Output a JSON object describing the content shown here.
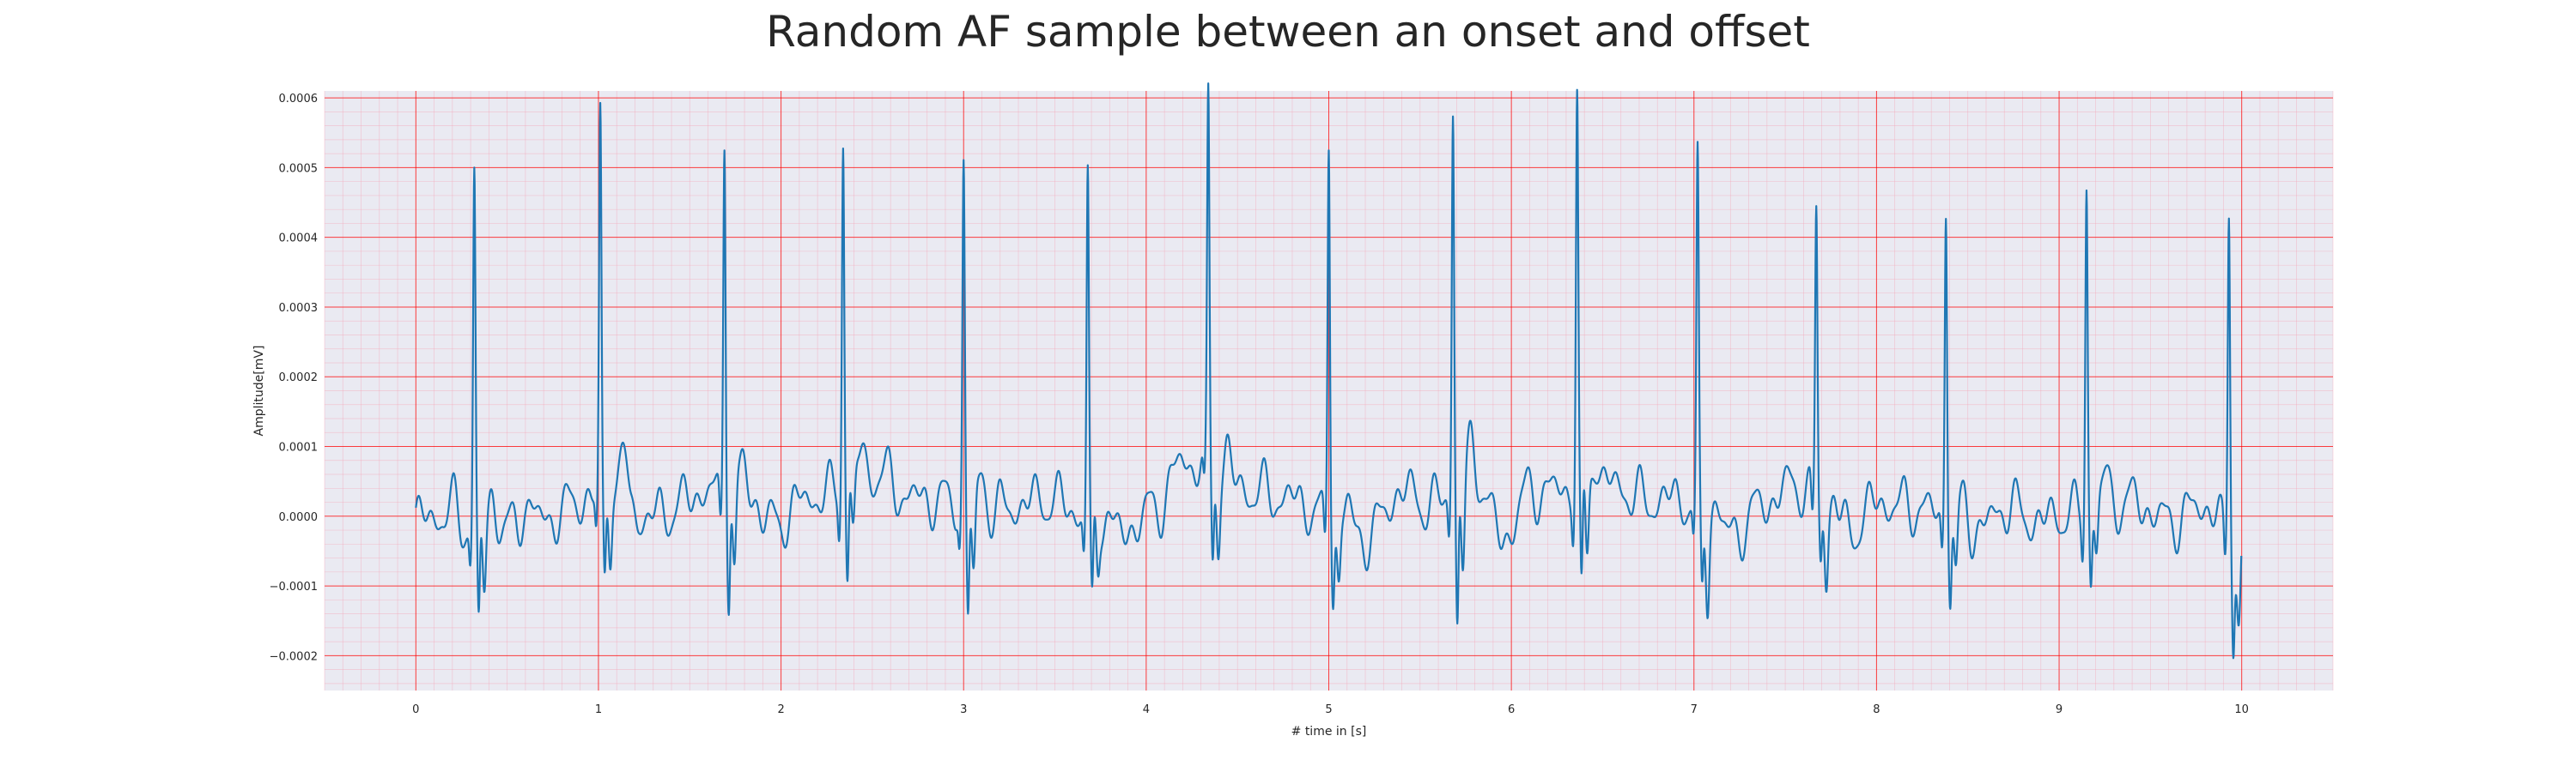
{
  "chart_data": {
    "type": "line",
    "title": "Random AF sample between an onset and offset",
    "xlabel": "# time in [s]",
    "ylabel": "Amplitude[mV]",
    "xlim": [
      -0.5,
      10.5
    ],
    "ylim": [
      -0.00025,
      0.00061
    ],
    "x_ticks": [
      0,
      1,
      2,
      3,
      4,
      5,
      6,
      7,
      8,
      9,
      10
    ],
    "x_tick_labels": [
      "0",
      "1",
      "2",
      "3",
      "4",
      "5",
      "6",
      "7",
      "8",
      "9",
      "10"
    ],
    "y_ticks": [
      -0.0002,
      -0.0001,
      0.0,
      0.0001,
      0.0002,
      0.0003,
      0.0004,
      0.0005,
      0.0006
    ],
    "y_tick_labels": [
      "−0.0002",
      "−0.0001",
      "0.0000",
      "0.0001",
      "0.0002",
      "0.0003",
      "0.0004",
      "0.0005",
      "0.0006"
    ],
    "grid": true,
    "colors": {
      "line": "#1f77b4",
      "plot_background": "#eaeaf2",
      "major_grid": "#ff0000",
      "minor_grid": "#f4a6b8"
    },
    "beats": [
      {
        "t": 0.32,
        "r": 0.00051,
        "s": -0.000152,
        "s2": -0.000165
      },
      {
        "t": 1.01,
        "r": 0.000545,
        "s": -0.000118,
        "s2": -0.000155
      },
      {
        "t": 1.69,
        "r": 0.000537,
        "s": -0.000132,
        "s2": -0.000185
      },
      {
        "t": 2.34,
        "r": 0.000523,
        "s": -0.000125,
        "s2": -0.00015
      },
      {
        "t": 3.0,
        "r": 0.000497,
        "s": -0.000148,
        "s2": -0.000182
      },
      {
        "t": 3.68,
        "r": 0.000515,
        "s": -0.000122,
        "s2": -0.00013
      },
      {
        "t": 4.34,
        "r": 0.000535,
        "s": -0.00012,
        "s2": -0.00015
      },
      {
        "t": 5.0,
        "r": 0.000561,
        "s": -9.2e-05,
        "s2": -0.00013
      },
      {
        "t": 5.68,
        "r": 0.000566,
        "s": -0.00019,
        "s2": -0.00021
      },
      {
        "t": 6.36,
        "r": 0.000574,
        "s": -0.000162,
        "s2": -0.000192
      },
      {
        "t": 7.02,
        "r": 0.000496,
        "s": -0.000112,
        "s2": -0.000172
      },
      {
        "t": 7.67,
        "r": 0.000427,
        "s": -8e-05,
        "s2": -0.000143
      },
      {
        "t": 8.38,
        "r": 0.00047,
        "s": -9.8e-05,
        "s2": -0.000135
      },
      {
        "t": 9.15,
        "r": 0.000482,
        "s": -9.8e-05,
        "s2": -0.000118
      },
      {
        "t": 9.93,
        "r": 0.000482,
        "s": -0.000128,
        "s2": -0.000152
      }
    ],
    "waveform_points": [
      [
        0.0,
        -1.3e-05
      ],
      [
        0.05,
        -8e-06
      ],
      [
        0.1,
        5e-06
      ],
      [
        0.15,
        -5e-06
      ],
      [
        0.2,
        2.8e-05
      ],
      [
        0.25,
        -1.8e-05
      ],
      [
        0.55,
        -3.2e-05
      ],
      [
        0.6,
        3.5e-05
      ],
      [
        0.7,
        -1.5e-05
      ],
      [
        0.8,
        1.2e-05
      ],
      [
        0.9,
        4.5e-05
      ],
      [
        1.18,
        7.5e-05
      ],
      [
        1.22,
        -1.2e-05
      ],
      [
        1.4,
        1.8e-05
      ],
      [
        1.55,
        6.2e-05
      ],
      [
        1.83,
        5.2e-05
      ],
      [
        1.95,
        -2.2e-05
      ],
      [
        2.15,
        4.8e-05
      ],
      [
        2.55,
        0.000108
      ],
      [
        2.7,
        4.8e-05
      ],
      [
        3.2,
        1.8e-05
      ],
      [
        3.45,
        4.5e-05
      ],
      [
        3.85,
        -4.8e-05
      ],
      [
        4.05,
        1.8e-05
      ],
      [
        4.2,
        0.000142
      ],
      [
        4.6,
        6.5e-05
      ],
      [
        4.75,
        4.8e-05
      ],
      [
        5.2,
        -5.5e-05
      ],
      [
        5.4,
        6.5e-05
      ],
      [
        5.55,
        3.2e-05
      ],
      [
        5.82,
        9.8e-05
      ],
      [
        5.95,
        -6.2e-05
      ],
      [
        6.1,
        6.5e-05
      ],
      [
        6.55,
        8.2e-05
      ],
      [
        6.75,
        3.8e-05
      ],
      [
        6.9,
        4.8e-05
      ],
      [
        7.2,
        -4.8e-05
      ],
      [
        7.4,
        3.5e-05
      ],
      [
        7.55,
        8.5e-05
      ],
      [
        7.85,
        -4e-05
      ],
      [
        8.0,
        3.5e-05
      ],
      [
        8.2,
        2.5e-05
      ],
      [
        8.55,
        -4e-05
      ],
      [
        8.7,
        2.5e-05
      ],
      [
        8.9,
        -1.5e-05
      ],
      [
        9.0,
        5e-06
      ],
      [
        9.4,
        3.8e-05
      ],
      [
        9.6,
        -1.2e-05
      ],
      [
        9.8,
        2.8e-05
      ],
      [
        10.0,
        -9.5e-05
      ]
    ]
  }
}
